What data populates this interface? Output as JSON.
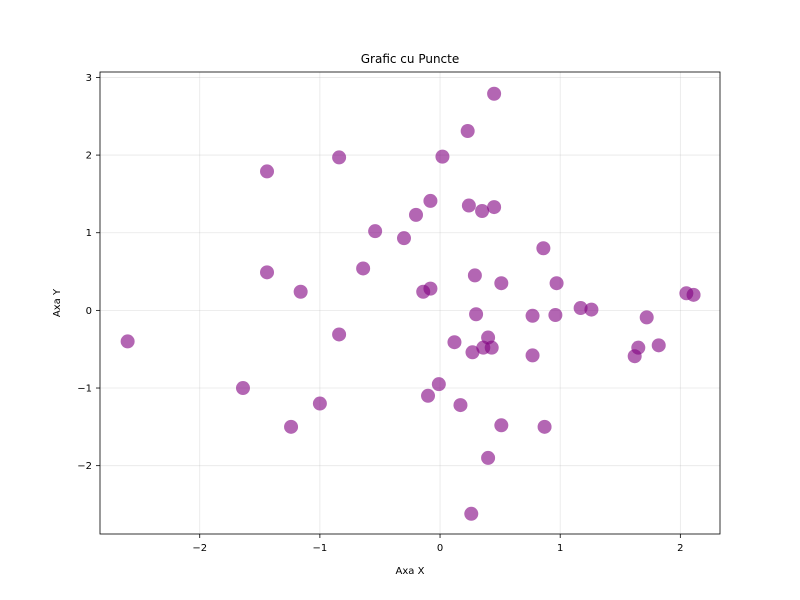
{
  "chart_data": {
    "type": "scatter",
    "title": "Grafic cu Puncte",
    "xlabel": "Axa X",
    "ylabel": "Axa Y",
    "xlim": [
      -2.83,
      2.33
    ],
    "ylim": [
      -2.88,
      3.07
    ],
    "xticks": [
      -2,
      -1,
      0,
      1,
      2
    ],
    "yticks": [
      -2,
      -1,
      0,
      1,
      2,
      3
    ],
    "xtick_labels": [
      "−2",
      "−1",
      "0",
      "1",
      "2"
    ],
    "ytick_labels": [
      "−2",
      "−1",
      "0",
      "1",
      "2",
      "3"
    ],
    "grid": true,
    "marker_color": "#800080",
    "marker_alpha": 0.6,
    "points": [
      {
        "x": -2.6,
        "y": -0.4
      },
      {
        "x": -1.64,
        "y": -1.0
      },
      {
        "x": -1.44,
        "y": 1.79
      },
      {
        "x": -1.44,
        "y": 0.49
      },
      {
        "x": -1.24,
        "y": -1.5
      },
      {
        "x": -1.16,
        "y": 0.24
      },
      {
        "x": -1.0,
        "y": -1.2
      },
      {
        "x": -0.84,
        "y": 1.97
      },
      {
        "x": -0.84,
        "y": -0.31
      },
      {
        "x": -0.64,
        "y": 0.54
      },
      {
        "x": -0.54,
        "y": 1.02
      },
      {
        "x": -0.3,
        "y": 0.93
      },
      {
        "x": -0.2,
        "y": 1.23
      },
      {
        "x": -0.14,
        "y": 0.24
      },
      {
        "x": -0.08,
        "y": 1.41
      },
      {
        "x": -0.08,
        "y": 0.28
      },
      {
        "x": -0.1,
        "y": -1.1
      },
      {
        "x": -0.01,
        "y": -0.95
      },
      {
        "x": 0.02,
        "y": 1.98
      },
      {
        "x": 0.12,
        "y": -0.41
      },
      {
        "x": 0.17,
        "y": -1.22
      },
      {
        "x": 0.23,
        "y": 2.31
      },
      {
        "x": 0.24,
        "y": 1.35
      },
      {
        "x": 0.26,
        "y": -2.62
      },
      {
        "x": 0.27,
        "y": -0.54
      },
      {
        "x": 0.29,
        "y": 0.45
      },
      {
        "x": 0.3,
        "y": -0.05
      },
      {
        "x": 0.35,
        "y": 1.28
      },
      {
        "x": 0.36,
        "y": -0.48
      },
      {
        "x": 0.4,
        "y": -0.35
      },
      {
        "x": 0.4,
        "y": -1.9
      },
      {
        "x": 0.43,
        "y": -0.48
      },
      {
        "x": 0.45,
        "y": 1.33
      },
      {
        "x": 0.45,
        "y": 2.79
      },
      {
        "x": 0.51,
        "y": 0.35
      },
      {
        "x": 0.51,
        "y": -1.48
      },
      {
        "x": 0.77,
        "y": -0.07
      },
      {
        "x": 0.77,
        "y": -0.58
      },
      {
        "x": 0.86,
        "y": 0.8
      },
      {
        "x": 0.87,
        "y": -1.5
      },
      {
        "x": 0.96,
        "y": -0.06
      },
      {
        "x": 0.97,
        "y": 0.35
      },
      {
        "x": 1.17,
        "y": 0.03
      },
      {
        "x": 1.26,
        "y": 0.01
      },
      {
        "x": 1.62,
        "y": -0.59
      },
      {
        "x": 1.65,
        "y": -0.48
      },
      {
        "x": 1.72,
        "y": -0.09
      },
      {
        "x": 1.82,
        "y": -0.45
      },
      {
        "x": 2.05,
        "y": 0.22
      },
      {
        "x": 2.11,
        "y": 0.2
      }
    ]
  }
}
